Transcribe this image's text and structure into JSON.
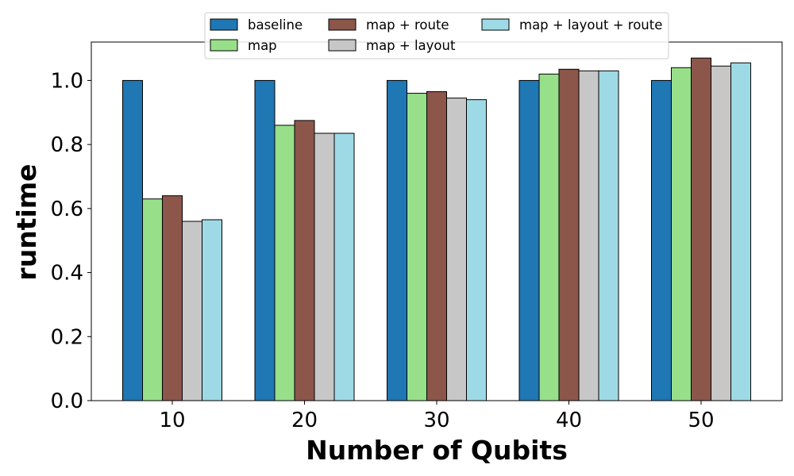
{
  "chart_data": {
    "type": "bar",
    "title": "",
    "xlabel": "Number of Qubits",
    "ylabel": "runtime",
    "categories": [
      "10",
      "20",
      "30",
      "40",
      "50"
    ],
    "ylim": [
      0.0,
      1.12
    ],
    "yticks": [
      "0.0",
      "0.2",
      "0.4",
      "0.6",
      "0.8",
      "1.0"
    ],
    "grid": false,
    "legend_placement": "top-center",
    "series": [
      {
        "name": "baseline",
        "color": "#1f77b4",
        "values": [
          1.0,
          1.0,
          1.0,
          1.0,
          1.0
        ]
      },
      {
        "name": "map",
        "color": "#98df8a",
        "values": [
          0.63,
          0.86,
          0.96,
          1.02,
          1.04
        ]
      },
      {
        "name": "map + route",
        "color": "#8c564b",
        "values": [
          0.64,
          0.875,
          0.965,
          1.035,
          1.07
        ]
      },
      {
        "name": "map + layout",
        "color": "#c7c7c7",
        "values": [
          0.56,
          0.835,
          0.945,
          1.03,
          1.045
        ]
      },
      {
        "name": "map + layout + route",
        "color": "#9edae5",
        "values": [
          0.565,
          0.835,
          0.94,
          1.03,
          1.055
        ]
      }
    ]
  }
}
